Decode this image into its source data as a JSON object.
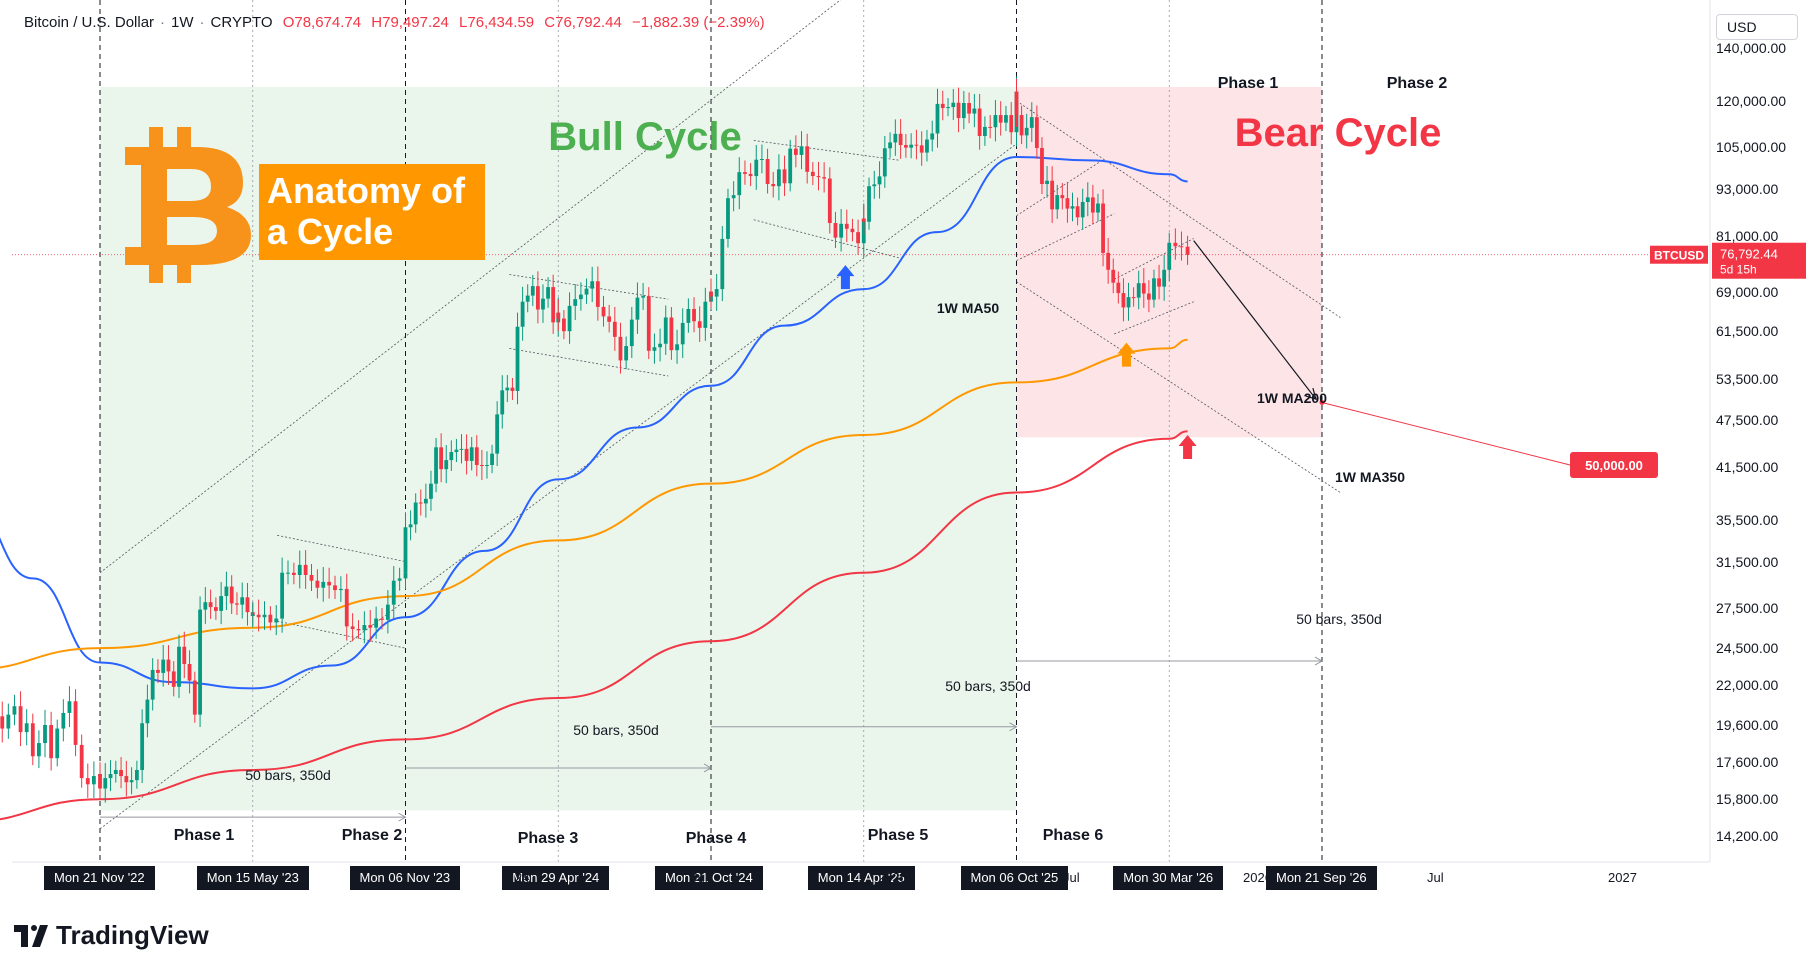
{
  "header": {
    "symbol": "Bitcoin / U.S. Dollar",
    "interval": "1W",
    "exchange": "CRYPTO",
    "open": "O78,674.74",
    "high": "H79,497.24",
    "low": "L76,434.59",
    "close": "C76,792.44",
    "change": "−1,882.39 (−2.39%)"
  },
  "currency": "USD",
  "price_axis": [
    "140,000.00",
    "120,000.00",
    "105,000.00",
    "93,000.00",
    "81,000.00",
    "69,000.00",
    "61,500.00",
    "53,500.00",
    "47,500.00",
    "41,500.00",
    "35,500.00",
    "31,500.00",
    "27,500.00",
    "24,500.00",
    "22,000.00",
    "19,600.00",
    "17,600.00",
    "15,800.00",
    "14,200.00"
  ],
  "last_price": {
    "ticker": "BTCUSD",
    "value": "76,792.44",
    "countdown": "5d 15h"
  },
  "target_label": "50,000.00",
  "date_axis": {
    "tags": [
      "Mon 21 Nov '22",
      "Mon 15 May '23",
      "Mon 06 Nov '23",
      "Mon 29 Apr '24",
      "Mon 21 Oct '24",
      "Mon 14 Apr '25",
      "Mon 06 Oct '25",
      "Mon 30 Mar '26",
      "Mon 21 Sep '26"
    ],
    "labels": [
      "24",
      "Jul",
      "2025",
      "Jul",
      "2026",
      "Jul",
      "2027"
    ]
  },
  "annotations": {
    "bull_cycle": "Bull Cycle",
    "bear_cycle": "Bear Cycle",
    "anatomy_line1": "Anatomy of",
    "anatomy_line2": "a Cycle",
    "bull_phases": [
      "Phase 1",
      "Phase 2",
      "Phase 3",
      "Phase 4",
      "Phase 5",
      "Phase 6"
    ],
    "bear_phases": [
      "Phase 1",
      "Phase 2"
    ],
    "ma50": "1W MA50",
    "ma200": "1W MA200",
    "ma350": "1W MA350",
    "bars_label": "50 bars, 350d"
  },
  "colors": {
    "bull_zone": "#e8f5e9",
    "bear_zone": "#fde2e4",
    "ma50": "#2962ff",
    "ma200": "#ff9800",
    "ma350": "#f23645",
    "up": "#089981",
    "down": "#f23645",
    "bitcoin": "#f7931a",
    "anatomy_box": "#ff9800"
  },
  "branding": "TradingView",
  "chart_data": {
    "type": "candlestick",
    "interval": "1W",
    "y_scale": "log",
    "ylim": [
      13500,
      150000
    ],
    "close_segments": [
      {
        "from": "2022-06-20",
        "to": "2022-11-21",
        "values": [
          21000,
          21300,
          19200,
          20800,
          21500,
          20100,
          19400,
          20200,
          20700,
          19200,
          19700,
          17900,
          18600,
          19600,
          17800,
          19400,
          20300,
          21000,
          18500,
          16800,
          16500,
          16900,
          17000
        ]
      },
      {
        "from": "2022-11-21",
        "to": "2023-05-15",
        "values": [
          16300,
          16800,
          17000,
          17200,
          16900,
          16600,
          16700,
          17200,
          19700,
          21100,
          23000,
          22800,
          23700,
          22900,
          21900,
          24600,
          23400,
          22300,
          20200,
          27400,
          28000,
          27600,
          27300,
          28500,
          29300,
          27900,
          27800,
          28400,
          27200,
          26900
        ]
      },
      {
        "from": "2023-05-15",
        "to": "2023-11-06",
        "values": [
          27000,
          26800,
          27000,
          26400,
          26700,
          30500,
          30500,
          30300,
          31200,
          30300,
          29800,
          29200,
          29700,
          29400,
          29000,
          29100,
          26100,
          25900,
          25800,
          26200,
          26000,
          26700,
          26600,
          27800,
          29800,
          30000,
          30500
        ]
      },
      {
        "from": "2023-11-06",
        "to": "2024-04-29",
        "values": [
          34800,
          35100,
          37400,
          37300,
          37800,
          39500,
          43900,
          41200,
          42300,
          43300,
          43600,
          43700,
          42200,
          43900,
          41700,
          41600,
          41700,
          43100,
          48300,
          51800,
          52200,
          51700,
          62300,
          67000,
          68200,
          70100,
          65500,
          67600,
          69900,
          63100,
          64900
        ]
      },
      {
        "from": "2024-04-29",
        "to": "2024-10-21",
        "values": [
          63800,
          61500,
          66200,
          67500,
          68400,
          69600,
          71100,
          66000,
          64200,
          63200,
          60500,
          56500,
          58900,
          63600,
          67800,
          68100,
          58100,
          58700,
          59300,
          64000,
          58200,
          59200,
          63000,
          65600,
          63300,
          62100,
          67000,
          69000
        ]
      },
      {
        "from": "2024-10-21",
        "to": "2025-04-14",
        "values": [
          68000,
          69500,
          80400,
          90500,
          91300,
          97600,
          97100,
          96500,
          101200,
          101400,
          94300,
          93700,
          98400,
          94500,
          104500,
          102600,
          105200,
          97700,
          96500,
          96200,
          95800,
          84200,
          80700,
          84000,
          82800,
          82000,
          79400,
          85300
        ]
      },
      {
        "from": "2025-04-14",
        "to": "2025-10-06",
        "values": [
          84500,
          93700,
          94200,
          96400,
          104600,
          106400,
          109100,
          105600,
          104800,
          105700,
          105500,
          103300,
          107300,
          109200,
          119000,
          117600,
          117900,
          119400,
          114200,
          119300,
          115700,
          117400,
          108400,
          111300,
          111200,
          115200,
          112700,
          115200,
          109600,
          123300
        ]
      },
      {
        "from": "2025-10-06",
        "to": "2026-03-30",
        "values": [
          115200,
          108600,
          111000,
          114500,
          104700,
          94300,
          95200,
          87600,
          91300,
          90500,
          87800,
          88400,
          85600,
          89500,
          90700,
          86800,
          89100,
          77200,
          73500,
          70800,
          68700,
          65900,
          67900,
          67800,
          70700,
          68600,
          67400,
          71700,
          70000,
          73500,
          76800
        ]
      },
      {
        "from": "2026-03-30",
        "to": "2026-04-20",
        "values": [
          79500,
          78700,
          78600,
          76792
        ]
      }
    ],
    "moving_averages": [
      {
        "name": "1W MA50",
        "color": "#2962ff",
        "points": [
          [
            "2022-06-20",
            38000
          ],
          [
            "2022-09-05",
            30000
          ],
          [
            "2022-11-21",
            23500
          ],
          [
            "2023-02-13",
            22200
          ],
          [
            "2023-05-15",
            21800
          ],
          [
            "2023-08-14",
            23300
          ],
          [
            "2023-11-06",
            26800
          ],
          [
            "2024-02-05",
            32500
          ],
          [
            "2024-04-29",
            40000
          ],
          [
            "2024-07-29",
            46500
          ],
          [
            "2024-10-21",
            52500
          ],
          [
            "2025-01-13",
            62500
          ],
          [
            "2025-04-14",
            69500
          ],
          [
            "2025-07-07",
            82000
          ],
          [
            "2025-10-06",
            102000
          ],
          [
            "2025-12-29",
            101000
          ],
          [
            "2026-03-30",
            97000
          ],
          [
            "2026-04-20",
            95000
          ]
        ]
      },
      {
        "name": "1W MA200",
        "color": "#ff9800",
        "points": [
          [
            "2022-06-20",
            23000
          ],
          [
            "2022-11-21",
            24500
          ],
          [
            "2023-05-15",
            26000
          ],
          [
            "2023-11-06",
            28500
          ],
          [
            "2024-04-29",
            33500
          ],
          [
            "2024-10-21",
            39500
          ],
          [
            "2025-04-14",
            45500
          ],
          [
            "2025-10-06",
            53000
          ],
          [
            "2026-03-30",
            58500
          ],
          [
            "2026-04-20",
            60000
          ]
        ]
      },
      {
        "name": "1W MA350",
        "color": "#f23645",
        "points": [
          [
            "2022-06-20",
            14800
          ],
          [
            "2022-11-21",
            15800
          ],
          [
            "2023-05-15",
            17200
          ],
          [
            "2023-11-06",
            18800
          ],
          [
            "2024-04-29",
            21200
          ],
          [
            "2024-10-21",
            25000
          ],
          [
            "2025-04-14",
            30500
          ],
          [
            "2025-10-06",
            38500
          ],
          [
            "2026-03-30",
            45000
          ],
          [
            "2026-04-20",
            46000
          ]
        ]
      }
    ],
    "cycle_zones": [
      {
        "label": "Bull Cycle",
        "from": "2022-11-21",
        "to": "2025-10-06"
      },
      {
        "label": "Bear Cycle",
        "from": "2025-10-06",
        "to": "2026-09-21"
      }
    ],
    "target": {
      "value": 50000,
      "date": "2026-09-21"
    }
  }
}
